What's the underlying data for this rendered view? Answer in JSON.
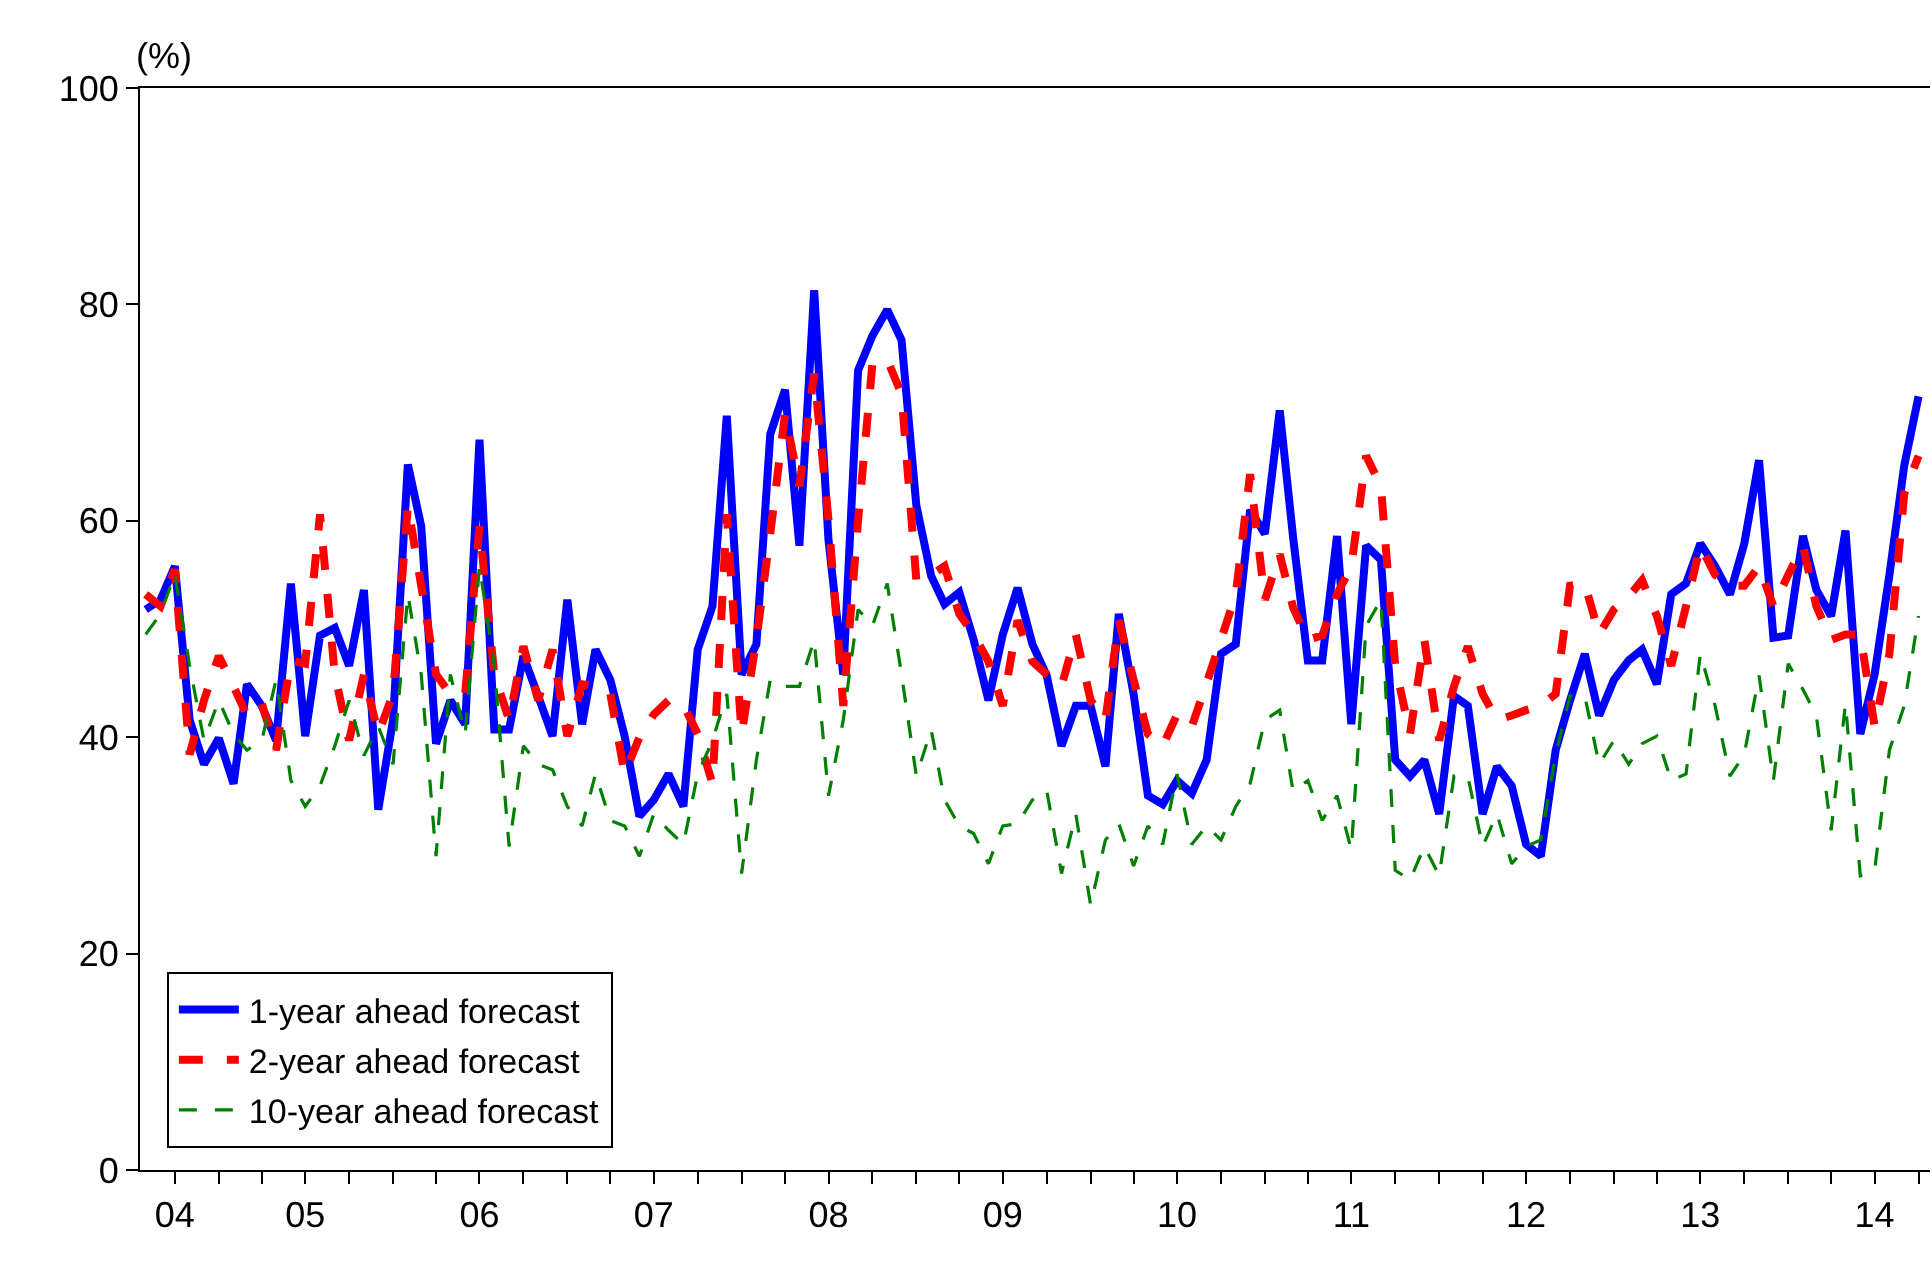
{
  "chart_data": {
    "type": "line",
    "ylabel": "(%)",
    "x": [
      "2004-08",
      "2004-09",
      "2004-10",
      "2004-11",
      "2004-12",
      "2005-01",
      "2005-02",
      "2005-03",
      "2005-04",
      "2005-05",
      "2005-06",
      "2005-07",
      "2005-08",
      "2005-09",
      "2005-10",
      "2005-11",
      "2005-12",
      "2006-01",
      "2006-02",
      "2006-03",
      "2006-04",
      "2006-05",
      "2006-06",
      "2006-07",
      "2006-08",
      "2006-09",
      "2006-10",
      "2006-11",
      "2006-12",
      "2007-01",
      "2007-02",
      "2007-03",
      "2007-04",
      "2007-05",
      "2007-06",
      "2007-07",
      "2007-08",
      "2007-09",
      "2007-10",
      "2007-11",
      "2007-12",
      "2008-01",
      "2008-02",
      "2008-03",
      "2008-04",
      "2008-05",
      "2008-06",
      "2008-07",
      "2008-08",
      "2008-09",
      "2008-10",
      "2008-11",
      "2008-12",
      "2009-01",
      "2009-02",
      "2009-03",
      "2009-04",
      "2009-05",
      "2009-06",
      "2009-07",
      "2009-08",
      "2009-09",
      "2009-10",
      "2009-11",
      "2009-12",
      "2010-01",
      "2010-02",
      "2010-03",
      "2010-04",
      "2010-05",
      "2010-06",
      "2010-07",
      "2010-08",
      "2010-09",
      "2010-10",
      "2010-11",
      "2010-12",
      "2011-01",
      "2011-02",
      "2011-03",
      "2011-04",
      "2011-05",
      "2011-06",
      "2011-07",
      "2011-08",
      "2011-09",
      "2011-10",
      "2011-11",
      "2011-12",
      "2012-01",
      "2012-02",
      "2012-03",
      "2012-04",
      "2012-05",
      "2012-06",
      "2012-07",
      "2012-08",
      "2012-09",
      "2012-10",
      "2012-11",
      "2012-12",
      "2013-01",
      "2013-02",
      "2013-03",
      "2013-04",
      "2013-05",
      "2013-06",
      "2013-07",
      "2013-08",
      "2013-09",
      "2013-10",
      "2013-11",
      "2013-12",
      "2014-01",
      "2014-02",
      "2014-03",
      "2014-04",
      "2014-05",
      "2014-06",
      "2014-07",
      "2014-08",
      "2014-09",
      "2014-10"
    ],
    "series": [
      {
        "name": "1-year ahead forecast",
        "color": "#0000ff",
        "line_style": "solid",
        "values": [
          51.8,
          52.7,
          55.8,
          41.6,
          37.5,
          39.9,
          35.7,
          44.9,
          42.9,
          39.7,
          54.2,
          40.1,
          49.4,
          50.1,
          46.6,
          53.6,
          33.3,
          41.6,
          65.2,
          59.5,
          39.4,
          43.4,
          41.2,
          67.5,
          40.7,
          40.7,
          47.5,
          43.8,
          40.1,
          52.7,
          41.2,
          48.1,
          45.3,
          40.1,
          32.7,
          34.2,
          36.6,
          33.6,
          48.1,
          52.1,
          69.7,
          45.8,
          48.6,
          68.0,
          72.1,
          57.7,
          81.3,
          58.2,
          45.8,
          73.9,
          77.1,
          79.5,
          76.7,
          61.4,
          54.9,
          52.3,
          53.4,
          49.0,
          43.4,
          49.5,
          53.8,
          48.6,
          45.7,
          39.2,
          42.9,
          42.9,
          37.3,
          51.4,
          44.0,
          34.6,
          33.8,
          36.0,
          34.8,
          37.9,
          47.7,
          48.6,
          61.0,
          58.8,
          70.2,
          58.5,
          47.1,
          47.1,
          58.6,
          41.2,
          57.7,
          56.4,
          37.9,
          36.4,
          37.9,
          32.9,
          43.8,
          42.9,
          32.9,
          37.3,
          35.5,
          30.1,
          29.0,
          38.8,
          43.4,
          47.7,
          42.0,
          45.3,
          47.1,
          48.1,
          44.9,
          53.2,
          54.2,
          57.9,
          55.8,
          53.2,
          57.9,
          65.6,
          49.2,
          49.4,
          58.6,
          53.6,
          51.2,
          59.1,
          40.3,
          45.8,
          55.0,
          65.1,
          71.5
        ]
      },
      {
        "name": "2-year ahead forecast",
        "color": "#ff0000",
        "line_style": "dashed",
        "values": [
          53.2,
          52.1,
          55.5,
          38.4,
          43.4,
          47.5,
          44.7,
          42.0,
          43.1,
          38.8,
          47.1,
          46.8,
          60.6,
          45.8,
          39.7,
          45.8,
          40.3,
          44.0,
          61.4,
          54.0,
          45.8,
          44.0,
          44.0,
          59.5,
          45.8,
          41.6,
          48.4,
          43.4,
          48.1,
          40.1,
          44.9,
          44.7,
          44.0,
          36.6,
          40.0,
          42.1,
          43.4,
          43.0,
          40.3,
          35.7,
          60.6,
          40.3,
          49.0,
          58.8,
          69.9,
          63.2,
          73.6,
          60.1,
          42.9,
          60.1,
          74.5,
          74.9,
          71.7,
          54.5,
          55.0,
          55.8,
          51.4,
          49.5,
          47.0,
          42.9,
          50.8,
          47.0,
          45.8,
          44.7,
          49.5,
          43.4,
          41.6,
          50.8,
          45.3,
          40.3,
          39.2,
          42.1,
          41.0,
          45.0,
          49.0,
          53.2,
          64.3,
          52.7,
          56.9,
          52.0,
          49.0,
          49.4,
          53.2,
          55.8,
          66.0,
          63.2,
          46.6,
          40.3,
          49.0,
          39.7,
          44.7,
          48.4,
          44.0,
          41.6,
          42.0,
          42.5,
          42.9,
          44.0,
          54.0,
          54.2,
          49.5,
          51.8,
          53.0,
          54.5,
          51.2,
          46.6,
          52.1,
          57.7,
          55.0,
          54.0,
          54.0,
          55.8,
          52.1,
          55.0,
          57.7,
          52.1,
          49.0,
          49.5,
          49.5,
          41.0,
          47.7,
          62.5,
          66.0
        ]
      },
      {
        "name": "10-year ahead forecast",
        "color": "#008000",
        "line_style": "dashed",
        "values": [
          49.5,
          51.4,
          55.1,
          46.6,
          39.7,
          43.4,
          40.3,
          38.8,
          39.7,
          45.3,
          36.0,
          33.6,
          35.5,
          39.2,
          43.4,
          38.3,
          41.0,
          37.5,
          53.2,
          45.8,
          29.0,
          45.8,
          40.3,
          55.8,
          46.6,
          29.9,
          39.2,
          37.5,
          37.0,
          33.6,
          31.8,
          36.6,
          32.3,
          31.8,
          29.0,
          32.9,
          31.4,
          30.1,
          36.6,
          39.7,
          44.0,
          27.4,
          37.9,
          45.3,
          44.7,
          44.7,
          49.0,
          34.6,
          41.6,
          51.8,
          50.3,
          54.2,
          45.8,
          36.4,
          40.7,
          34.2,
          31.8,
          31.1,
          28.3,
          31.8,
          32.0,
          34.2,
          35.1,
          27.4,
          32.9,
          24.5,
          30.5,
          32.0,
          28.1,
          31.8,
          30.1,
          36.6,
          30.1,
          31.8,
          30.5,
          33.6,
          35.7,
          41.6,
          42.5,
          35.0,
          36.0,
          32.3,
          34.6,
          29.6,
          50.3,
          52.7,
          27.7,
          26.8,
          29.9,
          27.2,
          36.4,
          36.4,
          29.9,
          32.9,
          28.3,
          29.9,
          30.5,
          38.4,
          43.8,
          43.8,
          37.5,
          39.7,
          37.5,
          39.4,
          40.1,
          36.0,
          36.6,
          47.7,
          42.9,
          36.4,
          38.4,
          45.7,
          36.0,
          46.8,
          44.4,
          42.0,
          31.4,
          43.1,
          27.2,
          27.7,
          38.8,
          42.9,
          51.2
        ]
      }
    ],
    "xlim": [
      "2004-07-20",
      "2014-10-25"
    ],
    "xticks": [
      {
        "value": "2004-10-01",
        "label": "04"
      },
      {
        "value": "2005-01-01",
        "label": null
      },
      {
        "value": "2005-04-01",
        "label": null
      },
      {
        "value": "2005-07-01",
        "label": "05"
      },
      {
        "value": "2005-10-01",
        "label": null
      },
      {
        "value": "2006-01-01",
        "label": null
      },
      {
        "value": "2006-04-01",
        "label": null
      },
      {
        "value": "2006-07-01",
        "label": "06"
      },
      {
        "value": "2006-10-01",
        "label": null
      },
      {
        "value": "2007-01-01",
        "label": null
      },
      {
        "value": "2007-04-01",
        "label": null
      },
      {
        "value": "2007-07-01",
        "label": "07"
      },
      {
        "value": "2007-10-01",
        "label": null
      },
      {
        "value": "2008-01-01",
        "label": null
      },
      {
        "value": "2008-04-01",
        "label": null
      },
      {
        "value": "2008-07-01",
        "label": "08"
      },
      {
        "value": "2008-10-01",
        "label": null
      },
      {
        "value": "2009-01-01",
        "label": null
      },
      {
        "value": "2009-04-01",
        "label": null
      },
      {
        "value": "2009-07-01",
        "label": "09"
      },
      {
        "value": "2009-10-01",
        "label": null
      },
      {
        "value": "2010-01-01",
        "label": null
      },
      {
        "value": "2010-04-01",
        "label": null
      },
      {
        "value": "2010-07-01",
        "label": "10"
      },
      {
        "value": "2010-10-01",
        "label": null
      },
      {
        "value": "2011-01-01",
        "label": null
      },
      {
        "value": "2011-04-01",
        "label": null
      },
      {
        "value": "2011-07-01",
        "label": "11"
      },
      {
        "value": "2011-10-01",
        "label": null
      },
      {
        "value": "2012-01-01",
        "label": null
      },
      {
        "value": "2012-04-01",
        "label": null
      },
      {
        "value": "2012-07-01",
        "label": "12"
      },
      {
        "value": "2012-10-01",
        "label": null
      },
      {
        "value": "2013-01-01",
        "label": null
      },
      {
        "value": "2013-04-01",
        "label": null
      },
      {
        "value": "2013-07-01",
        "label": "13"
      },
      {
        "value": "2013-10-01",
        "label": null
      },
      {
        "value": "2014-01-01",
        "label": null
      },
      {
        "value": "2014-04-01",
        "label": null
      },
      {
        "value": "2014-07-01",
        "label": "14"
      },
      {
        "value": "2014-10-01",
        "label": null
      }
    ],
    "ylim": [
      0,
      100
    ],
    "yticks": [
      0,
      20,
      40,
      60,
      80,
      100
    ],
    "legend": "bottom left"
  }
}
